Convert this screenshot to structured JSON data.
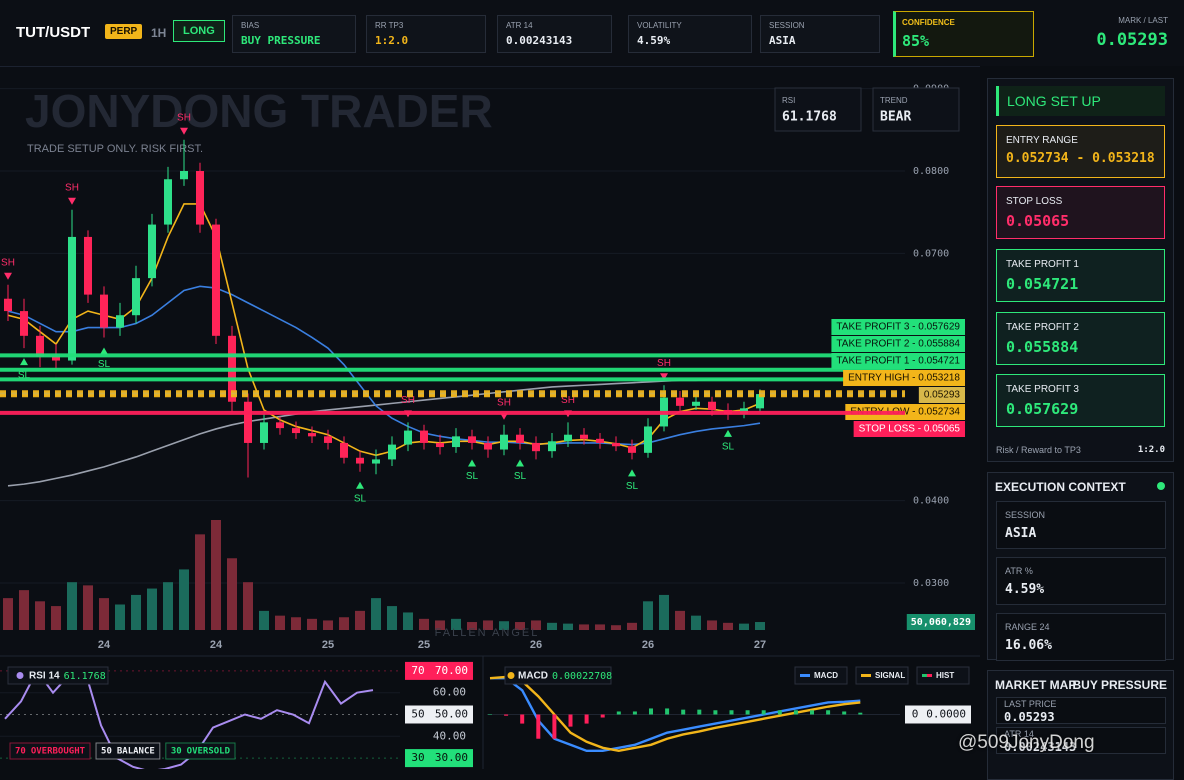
{
  "header": {
    "symbol": "TUT/USDT",
    "market": "PERP",
    "timeframe": "1H",
    "side": "LONG",
    "stats": [
      {
        "label": "BIAS",
        "value": "BUY PRESSURE",
        "color": "#2ee87a"
      },
      {
        "label": "RR TP3",
        "value": "1:2.0",
        "color": "#f2b51a"
      },
      {
        "label": "ATR 14",
        "value": "0.00243143",
        "color": "#e8ecf2"
      },
      {
        "label": "VOLATILITY",
        "value": "4.59%",
        "color": "#e8ecf2"
      },
      {
        "label": "SESSION",
        "value": "ASIA",
        "color": "#e8ecf2"
      }
    ],
    "confidence": {
      "label": "CONFIDENCE",
      "value": "85%"
    },
    "mark": {
      "label": "MARK / LAST",
      "value": "0.05293"
    }
  },
  "chart_data": [
    {
      "type": "candlestick",
      "title": "JONYDONG TRADER",
      "subtitle": "TRADE SETUP ONLY. RISK FIRST.",
      "annotation": "FALLEN ANGEL",
      "badges": [
        {
          "label": "RSI",
          "value": "61.1768"
        },
        {
          "label": "TREND",
          "value": "BEAR"
        }
      ],
      "categories": [
        null,
        null,
        null,
        null,
        null,
        null,
        "24",
        null,
        null,
        null,
        null,
        null,
        null,
        "24",
        null,
        null,
        null,
        null,
        null,
        null,
        "25",
        null,
        null,
        null,
        null,
        null,
        "25",
        null,
        null,
        null,
        null,
        null,
        null,
        "26",
        null,
        null,
        null,
        null,
        null,
        null,
        "26",
        null,
        null,
        null,
        null,
        null,
        null,
        "27"
      ],
      "open": [
        0.0645,
        0.063,
        0.06,
        0.0575,
        0.057,
        0.072,
        0.065,
        0.061,
        0.0625,
        0.067,
        0.0735,
        0.079,
        0.08,
        0.0735,
        0.06,
        0.052,
        0.047,
        0.0495,
        0.0488,
        0.0482,
        0.0478,
        0.047,
        0.0452,
        0.0445,
        0.045,
        0.0468,
        0.0485,
        0.047,
        0.0465,
        0.0478,
        0.047,
        0.0462,
        0.048,
        0.047,
        0.046,
        0.0472,
        0.048,
        0.0475,
        0.047,
        0.0466,
        0.0458,
        0.049,
        0.0525,
        0.0515,
        0.052,
        0.051,
        0.0505,
        0.0512
      ],
      "high": [
        0.0662,
        0.0645,
        0.0612,
        0.059,
        0.0753,
        0.0728,
        0.066,
        0.064,
        0.0685,
        0.0748,
        0.0805,
        0.0838,
        0.081,
        0.0742,
        0.0612,
        0.053,
        0.0505,
        0.0502,
        0.0496,
        0.049,
        0.0486,
        0.0478,
        0.046,
        0.0462,
        0.0478,
        0.0495,
        0.0492,
        0.048,
        0.0488,
        0.0486,
        0.0478,
        0.0492,
        0.0488,
        0.0478,
        0.0482,
        0.0495,
        0.0488,
        0.0482,
        0.0478,
        0.0474,
        0.05,
        0.054,
        0.0533,
        0.0528,
        0.0526,
        0.0518,
        0.052,
        0.0535
      ],
      "low": [
        0.0618,
        0.0585,
        0.0562,
        0.056,
        0.0565,
        0.064,
        0.0598,
        0.06,
        0.0615,
        0.066,
        0.0725,
        0.0782,
        0.0725,
        0.059,
        0.0508,
        0.0428,
        0.0462,
        0.048,
        0.0475,
        0.047,
        0.0462,
        0.0445,
        0.0435,
        0.0432,
        0.0442,
        0.046,
        0.0462,
        0.0456,
        0.0458,
        0.0462,
        0.0452,
        0.0455,
        0.0462,
        0.045,
        0.0452,
        0.0465,
        0.0468,
        0.0463,
        0.046,
        0.045,
        0.0452,
        0.0484,
        0.0508,
        0.051,
        0.0503,
        0.0498,
        0.05,
        0.0508
      ],
      "close": [
        0.063,
        0.06,
        0.0575,
        0.057,
        0.072,
        0.065,
        0.061,
        0.0625,
        0.067,
        0.0735,
        0.079,
        0.08,
        0.0735,
        0.06,
        0.052,
        0.047,
        0.0495,
        0.0488,
        0.0482,
        0.0478,
        0.047,
        0.0452,
        0.0445,
        0.045,
        0.0468,
        0.0485,
        0.047,
        0.0465,
        0.0478,
        0.047,
        0.0462,
        0.048,
        0.047,
        0.046,
        0.0472,
        0.048,
        0.0475,
        0.047,
        0.0466,
        0.0458,
        0.049,
        0.0525,
        0.0515,
        0.052,
        0.051,
        0.0505,
        0.0512,
        0.05293
      ],
      "volume": {
        "values": [
          200000000,
          250000000,
          180000000,
          150000000,
          300000000,
          280000000,
          200000000,
          160000000,
          220000000,
          260000000,
          300000000,
          380000000,
          600000000,
          690000000,
          450000000,
          300000000,
          120000000,
          90000000,
          80000000,
          70000000,
          60000000,
          80000000,
          120000000,
          200000000,
          150000000,
          110000000,
          70000000,
          60000000,
          70000000,
          50000000,
          60000000,
          55000000,
          50000000,
          60000000,
          45000000,
          40000000,
          35000000,
          35000000,
          30000000,
          45000000,
          180000000,
          220000000,
          120000000,
          90000000,
          60000000,
          45000000,
          40000000,
          50060829
        ],
        "value_labels": [
          null,
          null,
          null,
          null,
          null,
          null,
          null,
          null,
          null,
          null,
          null,
          null,
          null,
          null,
          null,
          null,
          null,
          null,
          null,
          null,
          null,
          null,
          null,
          null,
          null,
          null,
          null,
          null,
          null,
          null,
          null,
          null,
          null,
          null,
          null,
          null,
          null,
          null,
          null,
          null,
          null,
          null,
          null,
          null,
          null,
          null,
          null,
          "50,060,829"
        ],
        "up_color": "#1b6b5c",
        "down_color": "#7c2a38",
        "label_color": "#17906c"
      },
      "overlays": [
        {
          "color": "#9aa0ad",
          "values": [
            0.0418,
            0.042,
            0.0423,
            0.0427,
            0.0431,
            0.0436,
            0.0441,
            0.0447,
            0.0453,
            0.046,
            0.0467,
            0.0474,
            0.0481,
            0.0487,
            0.0492,
            0.0496,
            0.0499,
            0.0502,
            0.0505,
            0.0508,
            0.051,
            0.0512,
            0.0514,
            0.0516,
            0.0518,
            0.052,
            0.0522,
            0.0524,
            0.0526,
            0.0528,
            0.053,
            0.0532,
            0.0534,
            0.0536,
            0.0538,
            0.0539,
            0.054,
            0.0541,
            0.0542,
            0.0543,
            0.0544,
            0.0545,
            0.0546,
            0.0546,
            0.0547,
            0.0547,
            0.0548,
            0.0548
          ]
        },
        {
          "color": "#3a7fe0",
          "values": [
            0.063,
            0.0625,
            0.0615,
            0.0605,
            0.0605,
            0.061,
            0.061,
            0.061,
            0.0615,
            0.0625,
            0.064,
            0.0655,
            0.066,
            0.0658,
            0.065,
            0.064,
            0.063,
            0.062,
            0.061,
            0.0598,
            0.0585,
            0.0565,
            0.054,
            0.0515,
            0.05,
            0.049,
            0.0482,
            0.0478,
            0.0475,
            0.0473,
            0.0471,
            0.0471,
            0.047,
            0.0469,
            0.0469,
            0.047,
            0.047,
            0.047,
            0.0469,
            0.0468,
            0.047,
            0.0475,
            0.048,
            0.0484,
            0.0487,
            0.0489,
            0.0491,
            0.0494
          ]
        },
        {
          "color": "#f2b51a",
          "values": [
            0.0625,
            0.062,
            0.0605,
            0.059,
            0.062,
            0.063,
            0.0625,
            0.062,
            0.0635,
            0.067,
            0.072,
            0.076,
            0.076,
            0.072,
            0.064,
            0.056,
            0.051,
            0.0498,
            0.049,
            0.0485,
            0.048,
            0.047,
            0.046,
            0.0455,
            0.046,
            0.047,
            0.0472,
            0.047,
            0.0472,
            0.0472,
            0.0468,
            0.0472,
            0.0472,
            0.0468,
            0.047,
            0.0473,
            0.0474,
            0.0472,
            0.0469,
            0.0464,
            0.0475,
            0.0498,
            0.0508,
            0.0512,
            0.0511,
            0.0508,
            0.051,
            0.0518
          ]
        }
      ],
      "levels": [
        {
          "value": 0.057629,
          "label": "TAKE PROFIT 3 - 0.057629",
          "color": "#22e07a",
          "text_color": "#07140c",
          "dashed": false
        },
        {
          "value": 0.055884,
          "label": "TAKE PROFIT 2 - 0.055884",
          "color": "#22e07a",
          "text_color": "#07140c",
          "dashed": false
        },
        {
          "value": 0.054721,
          "label": "TAKE PROFIT 1 - 0.054721",
          "color": "#22e07a",
          "text_color": "#07140c",
          "dashed": false
        },
        {
          "value": 0.053218,
          "label": "ENTRY HIGH - 0.053218",
          "color": "#f2b51a",
          "text_color": "#1a1200",
          "dashed": true
        },
        {
          "value": 0.05293,
          "label": "0.05293",
          "color": "#d8b84a",
          "text_color": "#1a1200",
          "dashed": true
        },
        {
          "value": 0.052734,
          "label": "ENTRY LOW - 0.052734",
          "color": "#f2b51a",
          "text_color": "#1a1200",
          "dashed": true
        },
        {
          "value": 0.05065,
          "label": "STOP LOSS - 0.05065",
          "color": "#ff1f5a",
          "text_color": "#ffffff",
          "dashed": false
        }
      ],
      "markers": [
        {
          "index": 0,
          "label": "SH",
          "color": "#ff2d6a"
        },
        {
          "index": 4,
          "label": "SH",
          "color": "#ff2d6a"
        },
        {
          "index": 11,
          "label": "SH",
          "color": "#ff2d6a"
        },
        {
          "index": 25,
          "label": "SH",
          "color": "#ff2d6a"
        },
        {
          "index": 31,
          "label": "SH",
          "color": "#ff2d6a"
        },
        {
          "index": 35,
          "label": "SH",
          "color": "#ff2d6a"
        },
        {
          "index": 41,
          "label": "SH",
          "color": "#ff2d6a"
        },
        {
          "index": 1,
          "label": "SL",
          "color": "#2ee87a"
        },
        {
          "index": 6,
          "label": "SL",
          "color": "#2ee87a"
        },
        {
          "index": 22,
          "label": "SL",
          "color": "#2ee87a"
        },
        {
          "index": 29,
          "label": "SL",
          "color": "#2ee87a"
        },
        {
          "index": 32,
          "label": "SL",
          "color": "#2ee87a"
        },
        {
          "index": 39,
          "label": "SL",
          "color": "#2ee87a"
        },
        {
          "index": 45,
          "label": "SL",
          "color": "#2ee87a"
        }
      ],
      "up_color": "#2ee08a",
      "down_color": "#ff2458",
      "ylim": [
        0.0243,
        0.0925
      ],
      "yticks": [
        {
          "value": 0.09,
          "label": "0.0900"
        },
        {
          "value": 0.08,
          "label": "0.0800"
        },
        {
          "value": 0.07,
          "label": "0.0700"
        },
        {
          "value": 0.04,
          "label": "0.0400"
        },
        {
          "value": 0.03,
          "label": "0.0300"
        }
      ],
      "grid": true
    },
    {
      "type": "line",
      "title": "RSI 14",
      "last_label": "61.1768",
      "color": "#a98cf0",
      "values": [
        48,
        56,
        70,
        60,
        68,
        70,
        45,
        30,
        26,
        24,
        25,
        27,
        33,
        44,
        47,
        50,
        48,
        52,
        50,
        46,
        65,
        55,
        60,
        61.1768
      ],
      "ylim": [
        25,
        75
      ],
      "yticks": [
        {
          "value": 60,
          "label": "60.00"
        },
        {
          "value": 40,
          "label": "40.00"
        }
      ],
      "thresholds": [
        {
          "value": 70,
          "label": "70.00",
          "name": "OVERBOUGHT",
          "color": "#ff1f5a",
          "text_color": "#ffffff"
        },
        {
          "value": 50,
          "label": "50.00",
          "name": "BALANCE",
          "color": "#eef0f4",
          "text_color": "#10131a"
        },
        {
          "value": 30,
          "label": "30.00",
          "name": "OVERSOLD",
          "color": "#22e07a",
          "text_color": "#07140c"
        }
      ]
    },
    {
      "type": "macd",
      "title": "MACD",
      "last_label": "0.00022708",
      "series": [
        {
          "name": "MACD",
          "color": "#3a8cff",
          "values": [
            0.0006,
            0.0006,
            0.0004,
            -0.0001,
            -0.0004,
            -0.0005,
            -0.0006,
            -0.0006,
            -0.00055,
            -0.0005,
            -0.0004,
            -0.0003,
            -0.00025,
            -0.0002,
            -0.00015,
            -0.0001,
            -5e-05,
            0.0,
            5e-05,
            0.0001,
            0.00015,
            0.0002,
            0.00021,
            0.00022708
          ]
        },
        {
          "name": "SIGNAL",
          "color": "#f2b51a",
          "values": [
            0.0006,
            0.00062,
            0.00055,
            0.0003,
            0.0,
            -0.0003,
            -0.00045,
            -0.00055,
            -0.0006,
            -0.00055,
            -0.0005,
            -0.0004,
            -0.00033,
            -0.00028,
            -0.00022,
            -0.00017,
            -0.00012,
            -7e-05,
            -2e-05,
            3e-05,
            8e-05,
            0.00013,
            0.00017,
            0.0002
          ]
        },
        {
          "name": "HIST",
          "color": "#22c46e",
          "negative_color": "#ff1f5a",
          "values": [
            0.0,
            -2e-05,
            -0.00015,
            -0.0004,
            -0.0004,
            -0.0002,
            -0.00015,
            -5e-05,
            5e-05,
            5e-05,
            0.0001,
            0.0001,
            8e-05,
            8e-05,
            7e-05,
            7e-05,
            7e-05,
            7e-05,
            7e-05,
            7e-05,
            7e-05,
            7e-05,
            5e-05,
            3e-05
          ]
        }
      ],
      "ylim": [
        -0.0009,
        0.0009
      ],
      "yticks": [
        {
          "value": 0,
          "label": "0.0000"
        }
      ]
    }
  ],
  "setup_panel": {
    "title": "LONG SET UP",
    "cards": [
      {
        "label": "ENTRY RANGE",
        "value": "0.052734 - 0.053218",
        "color": "#f2b51a"
      },
      {
        "label": "STOP LOSS",
        "value": "0.05065",
        "color": "#ff2d6a"
      },
      {
        "label": "TAKE PROFIT 1",
        "value": "0.054721",
        "color": "#2ee87a"
      },
      {
        "label": "TAKE PROFIT 2",
        "value": "0.055884",
        "color": "#2ee87a"
      },
      {
        "label": "TAKE PROFIT 3",
        "value": "0.057629",
        "color": "#2ee87a"
      }
    ],
    "footer": {
      "label": "Risk / Reward to TP3",
      "value": "1:2.0"
    }
  },
  "context_panel": {
    "title": "EXECUTION CONTEXT",
    "items": [
      {
        "label": "SESSION",
        "value": "ASIA"
      },
      {
        "label": "ATR %",
        "value": "4.59%"
      },
      {
        "label": "RANGE 24",
        "value": "16.06%"
      }
    ]
  },
  "market_map": {
    "title": "MARKET MAP",
    "state": "BUY PRESSURE",
    "items": [
      {
        "label": "LAST PRICE",
        "value": "0.05293"
      },
      {
        "label": "ATR 14",
        "value": "0.00243143"
      }
    ]
  },
  "watermark": "@509JonyDong"
}
